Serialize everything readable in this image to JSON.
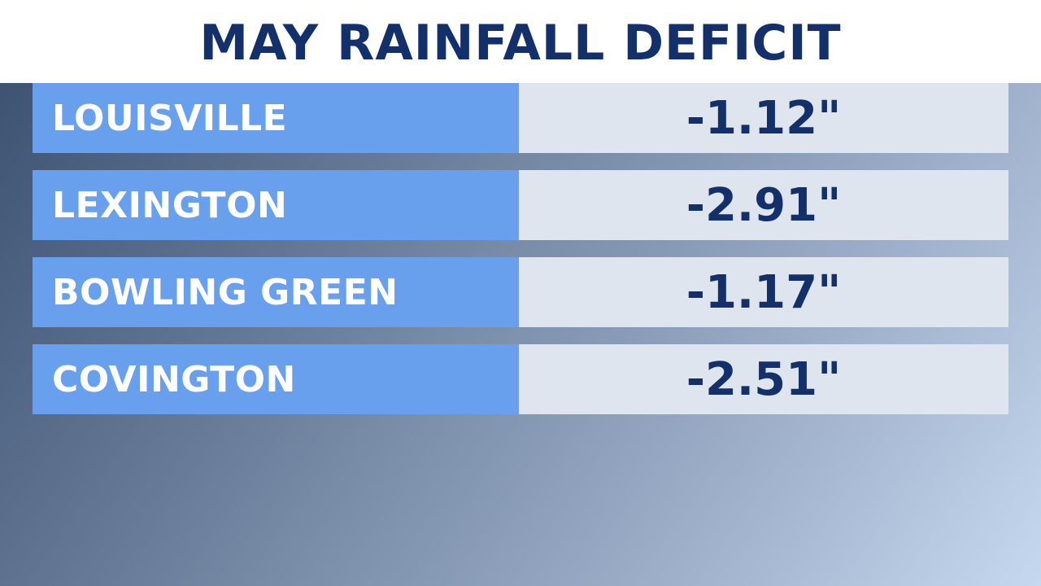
{
  "title": "MAY RAINFALL DEFICIT",
  "colors": {
    "title_text": "#14306a",
    "label_cell": "#68a0ee",
    "value_cell": "#dfe5ee",
    "value_text": "#14306a",
    "label_text": "#ffffff"
  },
  "chart_data": {
    "type": "table",
    "title": "MAY RAINFALL DEFICIT",
    "columns": [
      "",
      ""
    ],
    "rows": [
      {
        "city": "LOUISVILLE",
        "value": -1.12,
        "display": "-1.12\""
      },
      {
        "city": "LEXINGTON",
        "value": -2.91,
        "display": "-2.91\""
      },
      {
        "city": "BOWLING GREEN",
        "value": -1.17,
        "display": "-1.17\""
      },
      {
        "city": "COVINGTON",
        "value": -2.51,
        "display": "-2.51\""
      }
    ]
  }
}
